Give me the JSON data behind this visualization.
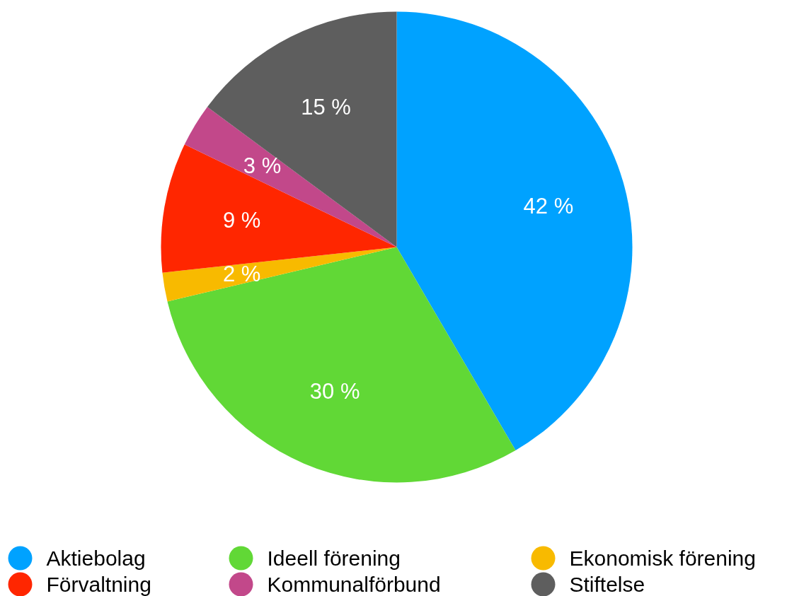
{
  "chart_data": {
    "type": "pie",
    "categories": [
      "Aktiebolag",
      "Ideell förening",
      "Ekonomisk förening",
      "Förvaltning",
      "Kommunalförbund",
      "Stiftelse"
    ],
    "values": [
      42,
      30,
      2,
      9,
      3,
      15
    ],
    "colors": [
      "#00a2ff",
      "#61d836",
      "#f8ba00",
      "#ff2600",
      "#c2488a",
      "#5e5e5e"
    ],
    "value_labels": [
      "42 %",
      "30 %",
      "2 %",
      "9 %",
      "3 %",
      "15 %"
    ],
    "legend": "bottom"
  }
}
